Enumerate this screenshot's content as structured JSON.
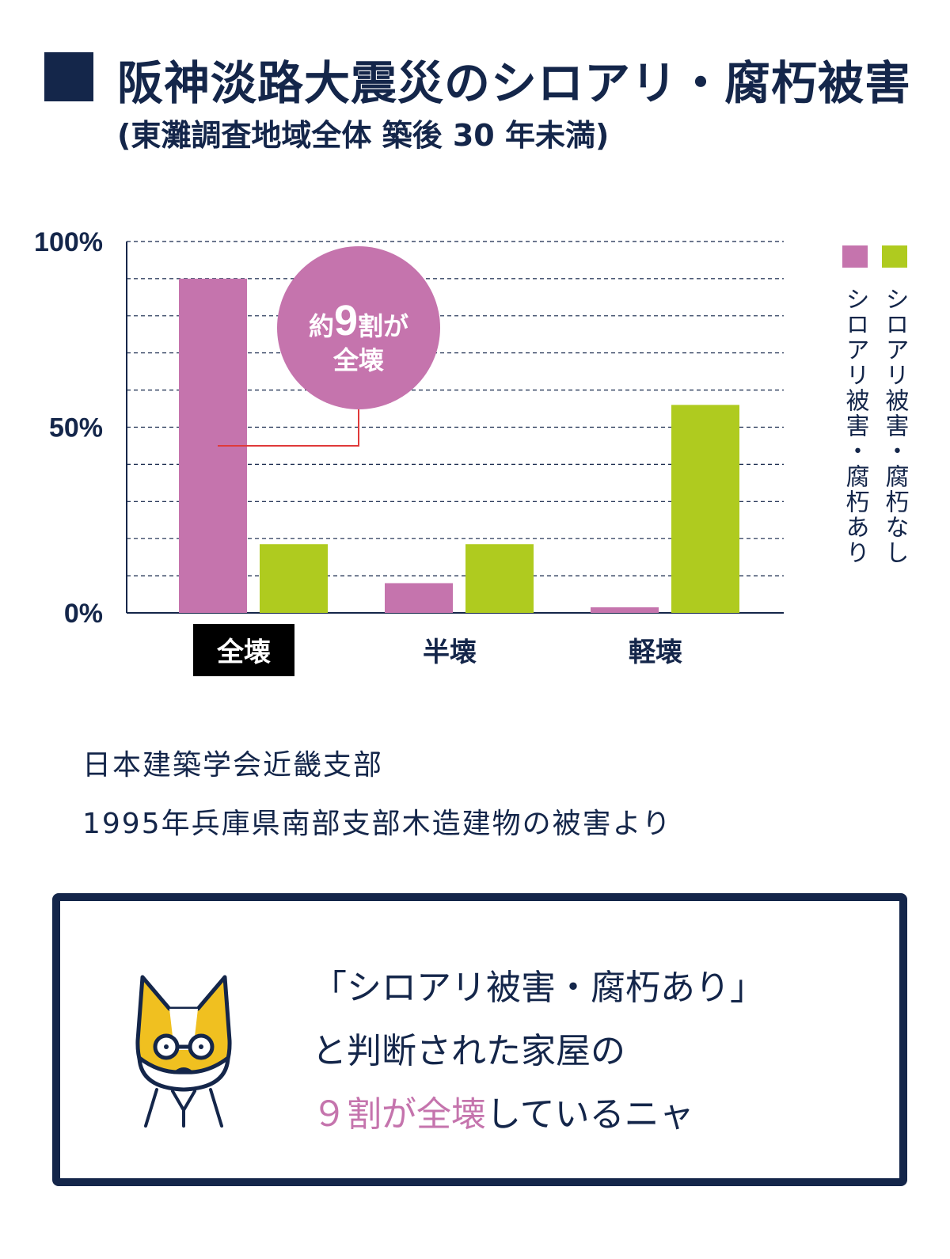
{
  "title": "阪神淡路大震災のシロアリ・腐朽被害",
  "subtitle": "(東灘調査地域全体 築後 30 年未満)",
  "colors": {
    "navy": "#14264a",
    "damaged": "#c574ad",
    "undamaged": "#afcb1f",
    "accent_line": "#e03a3a"
  },
  "chart_data": {
    "type": "bar",
    "categories": [
      "全壊",
      "半壊",
      "軽壊"
    ],
    "highlighted_category": "全壊",
    "series": [
      {
        "name": "シロアリ被害・腐朽あり",
        "values": [
          90,
          8,
          1.5
        ]
      },
      {
        "name": "シロアリ被害・腐朽なし",
        "values": [
          18.5,
          18.5,
          56
        ]
      }
    ],
    "ylim": [
      0,
      100
    ],
    "y_ticks": [
      0,
      50,
      100
    ],
    "y_tick_labels": [
      "0%",
      "50%",
      "100%"
    ],
    "grid": true,
    "legend_position": "right",
    "callout": {
      "line1_prefix": "約",
      "line1_num": "9",
      "line1_suffix": "割が",
      "line2": "全壊"
    }
  },
  "source": {
    "line1": "日本建築学会近畿支部",
    "line2": "1995年兵庫県南部支部木造建物の被害より"
  },
  "note": {
    "line1": "「シロアリ被害・腐朽あり」",
    "line2": "と判断された家屋の",
    "line3_accent": "９割が全壊",
    "line3_rest": "しているニャ",
    "icon": "cat-with-glasses-icon"
  }
}
